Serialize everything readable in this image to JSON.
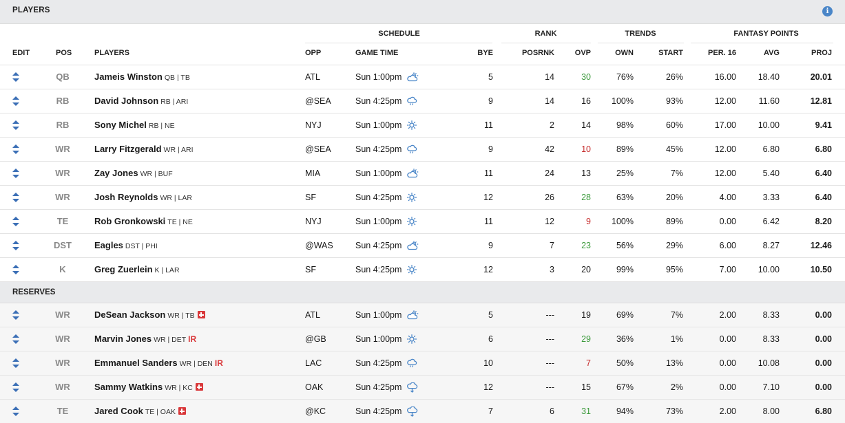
{
  "header": {
    "title": "PLAYERS",
    "info_glyph": "i"
  },
  "columns": {
    "group_schedule": "SCHEDULE",
    "group_rank": "RANK",
    "group_trends": "TRENDS",
    "group_fantasy": "FANTASY POINTS",
    "edit": "EDIT",
    "pos": "POS",
    "players": "PLAYERS",
    "opp": "OPP",
    "game_time": "GAME TIME",
    "bye": "BYE",
    "posrnk": "POSRNK",
    "ovp": "OVP",
    "own": "OWN",
    "start": "START",
    "per16": "PER. 16",
    "avg": "AVG",
    "proj": "PROJ"
  },
  "colors": {
    "green": "#3b9a3b",
    "red": "#c62b2b",
    "edit_arrows": "#3b6fb6",
    "weather_icon": "#4a86c8"
  },
  "starters": [
    {
      "pos": "QB",
      "name": "Jameis Winston",
      "sub": "QB | TB",
      "opp": "ATL",
      "time": "Sun 1:00pm",
      "weather": "partly-cloudy-icon",
      "bye": "5",
      "posrnk": "14",
      "ovp": "30",
      "ovp_color": "green",
      "own": "76%",
      "start": "26%",
      "per16": "16.00",
      "avg": "18.40",
      "proj": "20.01"
    },
    {
      "pos": "RB",
      "name": "David Johnson",
      "sub": "RB | ARI",
      "opp": "@SEA",
      "time": "Sun 4:25pm",
      "weather": "rain-icon",
      "bye": "9",
      "posrnk": "14",
      "ovp": "16",
      "ovp_color": "",
      "own": "100%",
      "start": "93%",
      "per16": "12.00",
      "avg": "11.60",
      "proj": "12.81"
    },
    {
      "pos": "RB",
      "name": "Sony Michel",
      "sub": "RB | NE",
      "opp": "NYJ",
      "time": "Sun 1:00pm",
      "weather": "sunny-icon",
      "bye": "11",
      "posrnk": "2",
      "ovp": "14",
      "ovp_color": "",
      "own": "98%",
      "start": "60%",
      "per16": "17.00",
      "avg": "10.00",
      "proj": "9.41"
    },
    {
      "pos": "WR",
      "name": "Larry Fitzgerald",
      "sub": "WR | ARI",
      "opp": "@SEA",
      "time": "Sun 4:25pm",
      "weather": "rain-icon",
      "bye": "9",
      "posrnk": "42",
      "ovp": "10",
      "ovp_color": "red",
      "own": "89%",
      "start": "45%",
      "per16": "12.00",
      "avg": "6.80",
      "proj": "6.80"
    },
    {
      "pos": "WR",
      "name": "Zay Jones",
      "sub": "WR | BUF",
      "opp": "MIA",
      "time": "Sun 1:00pm",
      "weather": "partly-cloudy-icon",
      "bye": "11",
      "posrnk": "24",
      "ovp": "13",
      "ovp_color": "",
      "own": "25%",
      "start": "7%",
      "per16": "12.00",
      "avg": "5.40",
      "proj": "6.40"
    },
    {
      "pos": "WR",
      "name": "Josh Reynolds",
      "sub": "WR | LAR",
      "opp": "SF",
      "time": "Sun 4:25pm",
      "weather": "sunny-icon",
      "bye": "12",
      "posrnk": "26",
      "ovp": "28",
      "ovp_color": "green",
      "own": "63%",
      "start": "20%",
      "per16": "4.00",
      "avg": "3.33",
      "proj": "6.40"
    },
    {
      "pos": "TE",
      "name": "Rob Gronkowski",
      "sub": "TE | NE",
      "opp": "NYJ",
      "time": "Sun 1:00pm",
      "weather": "sunny-icon",
      "bye": "11",
      "posrnk": "12",
      "ovp": "9",
      "ovp_color": "red",
      "own": "100%",
      "start": "89%",
      "per16": "0.00",
      "avg": "6.42",
      "proj": "8.20"
    },
    {
      "pos": "DST",
      "name": "Eagles",
      "sub": "DST | PHI",
      "opp": "@WAS",
      "time": "Sun 4:25pm",
      "weather": "partly-cloudy-icon",
      "bye": "9",
      "posrnk": "7",
      "ovp": "23",
      "ovp_color": "green",
      "own": "56%",
      "start": "29%",
      "per16": "6.00",
      "avg": "8.27",
      "proj": "12.46"
    },
    {
      "pos": "K",
      "name": "Greg Zuerlein",
      "sub": "K | LAR",
      "opp": "SF",
      "time": "Sun 4:25pm",
      "weather": "sunny-icon",
      "bye": "12",
      "posrnk": "3",
      "ovp": "20",
      "ovp_color": "",
      "own": "99%",
      "start": "95%",
      "per16": "7.00",
      "avg": "10.00",
      "proj": "10.50"
    }
  ],
  "reserves_title": "RESERVES",
  "reserves": [
    {
      "pos": "WR",
      "name": "DeSean Jackson",
      "sub": "WR | TB",
      "status": "injury-icon",
      "opp": "ATL",
      "time": "Sun 1:00pm",
      "weather": "partly-cloudy-icon",
      "bye": "5",
      "posrnk": "---",
      "ovp": "19",
      "ovp_color": "",
      "own": "69%",
      "start": "7%",
      "per16": "2.00",
      "avg": "8.33",
      "proj": "0.00"
    },
    {
      "pos": "WR",
      "name": "Marvin Jones",
      "sub": "WR | DET",
      "status": "IR",
      "opp": "@GB",
      "time": "Sun 1:00pm",
      "weather": "sunny-icon",
      "bye": "6",
      "posrnk": "---",
      "ovp": "29",
      "ovp_color": "green",
      "own": "36%",
      "start": "1%",
      "per16": "0.00",
      "avg": "8.33",
      "proj": "0.00"
    },
    {
      "pos": "WR",
      "name": "Emmanuel Sanders",
      "sub": "WR | DEN",
      "status": "IR",
      "opp": "LAC",
      "time": "Sun 4:25pm",
      "weather": "rain-icon",
      "bye": "10",
      "posrnk": "---",
      "ovp": "7",
      "ovp_color": "red",
      "own": "50%",
      "start": "13%",
      "per16": "0.00",
      "avg": "10.08",
      "proj": "0.00"
    },
    {
      "pos": "WR",
      "name": "Sammy Watkins",
      "sub": "WR | KC",
      "status": "injury-icon",
      "opp": "OAK",
      "time": "Sun 4:25pm",
      "weather": "rain-heavy-icon",
      "bye": "12",
      "posrnk": "---",
      "ovp": "15",
      "ovp_color": "",
      "own": "67%",
      "start": "2%",
      "per16": "0.00",
      "avg": "7.10",
      "proj": "0.00"
    },
    {
      "pos": "TE",
      "name": "Jared Cook",
      "sub": "TE | OAK",
      "status": "injury-icon",
      "opp": "@KC",
      "time": "Sun 4:25pm",
      "weather": "rain-heavy-icon",
      "bye": "7",
      "posrnk": "6",
      "ovp": "31",
      "ovp_color": "green",
      "own": "94%",
      "start": "73%",
      "per16": "2.00",
      "avg": "8.00",
      "proj": "6.80"
    }
  ]
}
